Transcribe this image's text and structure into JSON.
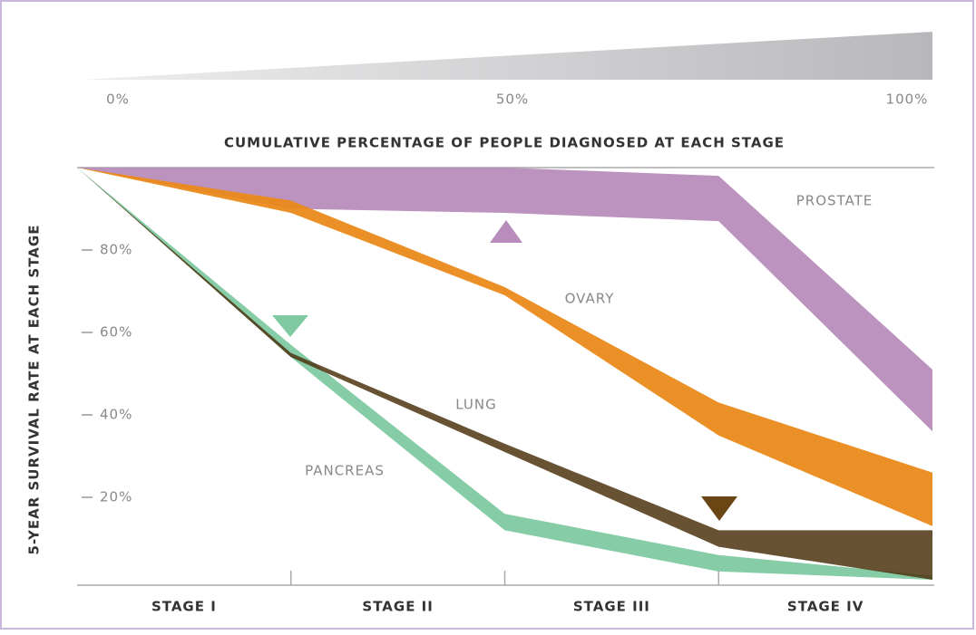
{
  "chart_data": {
    "type": "band",
    "x_label": "CUMULATIVE PERCENTAGE OF PEOPLE DIAGNOSED AT EACH STAGE",
    "y_label": "5-YEAR SURVIVAL RATE AT EACH STAGE",
    "categories": [
      "STAGE I",
      "STAGE II",
      "STAGE III",
      "STAGE IV"
    ],
    "x": [
      0,
      25,
      50,
      75,
      100
    ],
    "xlim": [
      0,
      100
    ],
    "xticks": [
      {
        "value": 0,
        "label": "0%"
      },
      {
        "value": 50,
        "label": "50%"
      },
      {
        "value": 100,
        "label": "100%"
      }
    ],
    "ylim": [
      0,
      100
    ],
    "yticks": [
      {
        "value": 20,
        "label": "20%"
      },
      {
        "value": 40,
        "label": "40%"
      },
      {
        "value": 60,
        "label": "60%"
      },
      {
        "value": 80,
        "label": "80%"
      }
    ],
    "series": [
      {
        "name": "PROSTATE",
        "color": "#b88cbb",
        "values": [
          100,
          100,
          100,
          98,
          51
        ],
        "lower": [
          100,
          90,
          89,
          87,
          36
        ]
      },
      {
        "name": "OVARY",
        "color": "#ea8a1a",
        "values": [
          100,
          92,
          71,
          43,
          26
        ],
        "lower": [
          100,
          89,
          69,
          35,
          13
        ]
      },
      {
        "name": "PANCREAS",
        "color": "#80c9a1",
        "values": [
          100,
          57,
          16,
          6,
          1
        ],
        "lower": [
          100,
          54,
          12,
          2,
          0
        ]
      },
      {
        "name": "LUNG",
        "color": "#4e3410",
        "values": [
          100,
          55,
          33,
          12,
          12
        ],
        "lower": [
          100,
          54,
          31,
          8,
          0
        ]
      }
    ]
  }
}
